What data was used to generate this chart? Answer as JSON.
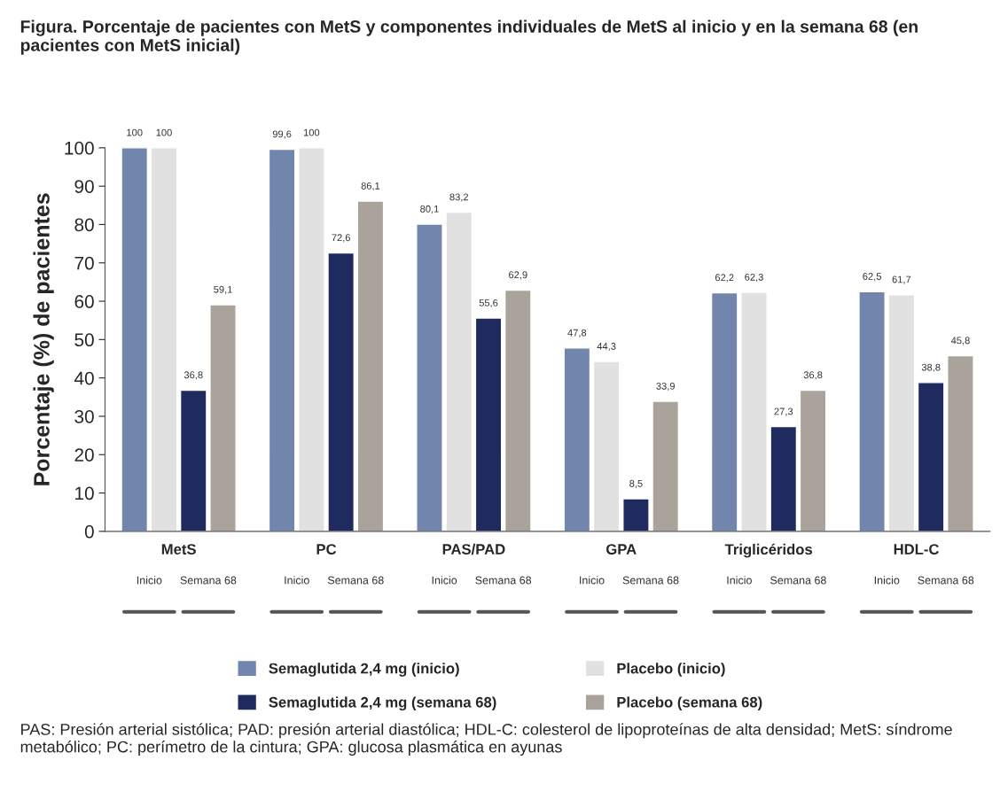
{
  "chart_data": {
    "type": "bar",
    "title": "Figura. Porcentaje de pacientes con MetS y componentes individuales de MetS al inicio y en la semana 68 (en pacientes con MetS inicial)",
    "ylabel": "Porcentaje (%) de pacientes",
    "categories": [
      "MetS",
      "PC",
      "PAS/PAD",
      "GPA",
      "Triglicéridos",
      "HDL-C"
    ],
    "series": [
      {
        "name": "Semaglutida 2,4 mg (inicio)",
        "color": "#7285ad",
        "values": [
          100,
          99.6,
          80.1,
          47.8,
          62.2,
          62.5
        ],
        "value_labels": [
          "100",
          "99,6",
          "80,1",
          "47,8",
          "62,2",
          "62,5"
        ]
      },
      {
        "name": "Placebo (inicio)",
        "color": "#e1e1e1",
        "values": [
          100,
          100,
          83.2,
          44.3,
          62.3,
          61.7
        ],
        "value_labels": [
          "100",
          "100",
          "83,2",
          "44,3",
          "62,3",
          "61,7"
        ]
      },
      {
        "name": "Semaglutida 2,4 mg (semana 68)",
        "color": "#1f2a5e",
        "values": [
          36.8,
          72.6,
          55.6,
          8.5,
          27.3,
          38.8
        ],
        "value_labels": [
          "36,8",
          "72,6",
          "55,6",
          "8,5",
          "27,3",
          "38,8"
        ]
      },
      {
        "name": "Placebo (semana 68)",
        "color": "#a9a39b",
        "values": [
          59.1,
          86.1,
          62.9,
          33.9,
          36.8,
          45.8
        ],
        "value_labels": [
          "59,1",
          "86,1",
          "62,9",
          "33,9",
          "36,8",
          "45,8"
        ]
      }
    ],
    "ylim": [
      0,
      100
    ],
    "yticks": [
      0,
      10,
      20,
      30,
      40,
      50,
      60,
      70,
      80,
      90,
      100
    ],
    "grid": false,
    "legend": "bottom",
    "annotations": [
      "Inicio",
      "Semana 68",
      "Inicio",
      "Semana 68",
      "Inicio",
      "Semana 68",
      "Inicio",
      "Semana 68",
      "Inicio",
      "Semana 68",
      "Inicio",
      "Semana 68",
      "PAS: Presión arterial sistólica; PAD: presión arterial diastólica; HDL-C: colesterol de lipoproteínas de alta densidad; MetS: síndrome metabólico; PC: perímetro de la cintura; GPA: glucosa plasmática en ayunas"
    ]
  }
}
